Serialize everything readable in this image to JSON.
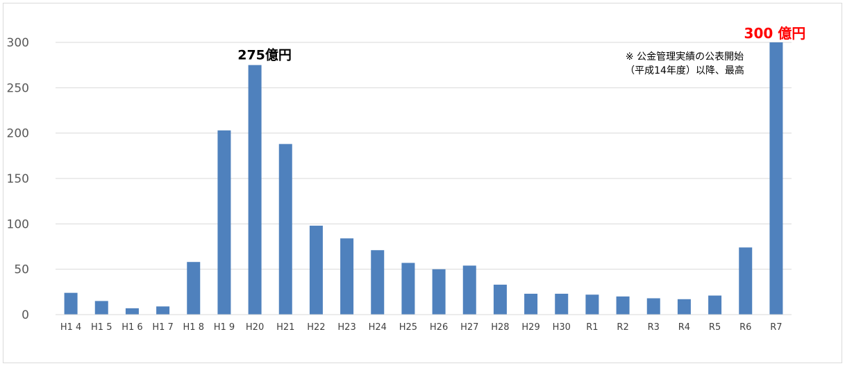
{
  "chart_data": {
    "type": "bar",
    "categories": [
      "H14",
      "H15",
      "H16",
      "H17",
      "H18",
      "H19",
      "H20",
      "H21",
      "H22",
      "H23",
      "H24",
      "H25",
      "H26",
      "H27",
      "H28",
      "H29",
      "H30",
      "R1",
      "R2",
      "R3",
      "R4",
      "R5",
      "R6",
      "R7"
    ],
    "category_labels": [
      "H1 4",
      "H1 5",
      "H1 6",
      "H1 7",
      "H1 8",
      "H1 9",
      "H20",
      "H21",
      "H22",
      "H23",
      "H24",
      "H25",
      "H26",
      "H27",
      "H28",
      "H29",
      "H30",
      "R1",
      "R2",
      "R3",
      "R4",
      "R5",
      "R6",
      "R7"
    ],
    "values": [
      24,
      15,
      7,
      9,
      58,
      203,
      275,
      188,
      98,
      84,
      71,
      57,
      50,
      54,
      33,
      23,
      23,
      22,
      20,
      18,
      17,
      21,
      74,
      300
    ],
    "title": "",
    "xlabel": "",
    "ylabel": "",
    "ylim": [
      0,
      300
    ],
    "yticks": [
      "0",
      "50",
      "100",
      "150",
      "200",
      "250",
      "300"
    ],
    "grid": true,
    "bar_color": "#4f81bd",
    "annotations": [
      {
        "text": "275億円",
        "category": "H20",
        "color": "#000000"
      },
      {
        "text": "300 億円",
        "category": "R7",
        "color": "#ff0000"
      }
    ],
    "note_lines": [
      "※ 公金管理実績の公表開始",
      "（平成14年度）以降、最高"
    ]
  }
}
